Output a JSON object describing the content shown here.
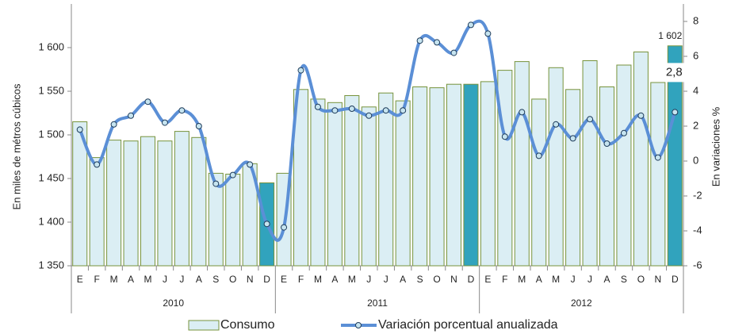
{
  "chart_data": {
    "type": "bar_line",
    "y_label": "En miles de métros cúbicos",
    "y2_label": "En variaciones %",
    "categories": [
      "E",
      "F",
      "M",
      "A",
      "M",
      "J",
      "J",
      "A",
      "S",
      "O",
      "N",
      "D",
      "E",
      "F",
      "M",
      "A",
      "M",
      "J",
      "J",
      "A",
      "S",
      "O",
      "N",
      "D",
      "E",
      "F",
      "M",
      "A",
      "M",
      "J",
      "J",
      "A",
      "S",
      "O",
      "N",
      "D"
    ],
    "groups": [
      "2010",
      "2011",
      "2012"
    ],
    "ylim": [
      1350,
      1650
    ],
    "yticks": [
      {
        "value": 1350,
        "label": "1 350"
      },
      {
        "value": 1400,
        "label": "1 400"
      },
      {
        "value": 1450,
        "label": "1 450"
      },
      {
        "value": 1500,
        "label": "1 500"
      },
      {
        "value": 1550,
        "label": "1 550"
      },
      {
        "value": 1600,
        "label": "1 600"
      }
    ],
    "y2lim": [
      -6,
      9
    ],
    "y2ticks": [
      -6,
      -4,
      -2,
      0,
      2,
      4,
      6,
      8
    ],
    "legend": "bottom",
    "series": [
      {
        "name": "Consumo",
        "color": "#dbeef4",
        "edge_color": "#77933c",
        "colors": [
          "#dbeef4",
          "#dbeef4",
          "#dbeef4",
          "#dbeef4",
          "#dbeef4",
          "#dbeef4",
          "#dbeef4",
          "#dbeef4",
          "#dbeef4",
          "#dbeef4",
          "#dbeef4",
          "#31a3bd",
          "#dbeef4",
          "#dbeef4",
          "#dbeef4",
          "#dbeef4",
          "#dbeef4",
          "#dbeef4",
          "#dbeef4",
          "#dbeef4",
          "#dbeef4",
          "#dbeef4",
          "#dbeef4",
          "#31a3bd",
          "#dbeef4",
          "#dbeef4",
          "#dbeef4",
          "#dbeef4",
          "#dbeef4",
          "#dbeef4",
          "#dbeef4",
          "#dbeef4",
          "#dbeef4",
          "#dbeef4",
          "#dbeef4",
          "#31a3bd"
        ],
        "values": [
          1515,
          1474,
          1494,
          1493,
          1498,
          1493,
          1504,
          1497,
          1456,
          1455,
          1467,
          1445,
          1456,
          1552,
          1541,
          1537,
          1545,
          1532,
          1548,
          1539,
          1555,
          1554,
          1558,
          1558,
          1561,
          1574,
          1584,
          1541,
          1577,
          1552,
          1585,
          1555,
          1580,
          1595,
          1560,
          1602
        ],
        "value_labels": [
          null,
          null,
          null,
          null,
          null,
          null,
          null,
          null,
          null,
          null,
          null,
          null,
          null,
          null,
          null,
          null,
          null,
          null,
          null,
          null,
          null,
          null,
          null,
          null,
          null,
          null,
          null,
          null,
          null,
          null,
          null,
          null,
          null,
          null,
          null,
          "1 602"
        ]
      },
      {
        "name": "Variación porcentual anualizada",
        "color": "#5b8fd6",
        "marker_color": "#c6e4f0",
        "axis": "y2",
        "values": [
          1.8,
          -0.2,
          2.1,
          2.6,
          3.4,
          2.2,
          2.9,
          2.0,
          -1.3,
          -0.8,
          -0.2,
          -3.6,
          -3.8,
          5.2,
          3.1,
          2.9,
          3.0,
          2.6,
          2.9,
          2.9,
          6.9,
          6.8,
          6.2,
          7.8,
          7.3,
          1.4,
          2.8,
          0.3,
          2.1,
          1.3,
          2.4,
          1.0,
          1.6,
          2.6,
          0.2,
          2.8
        ],
        "value_labels": [
          null,
          null,
          null,
          null,
          null,
          null,
          null,
          null,
          null,
          null,
          null,
          null,
          null,
          null,
          null,
          null,
          null,
          null,
          null,
          null,
          null,
          null,
          null,
          null,
          null,
          null,
          null,
          null,
          null,
          null,
          null,
          null,
          null,
          null,
          null,
          "2,8"
        ]
      }
    ]
  }
}
